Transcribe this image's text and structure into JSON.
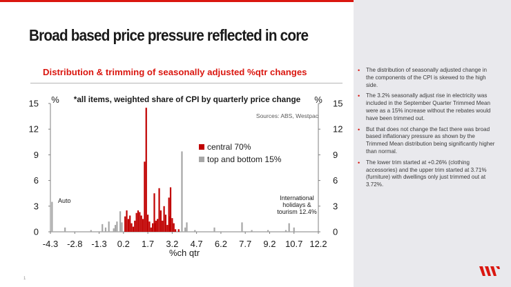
{
  "slide": {
    "title": "Broad based price pressure reflected in core",
    "subtitle": "Distribution & trimming of seasonally adjusted %qtr changes",
    "page_number": "1",
    "accent": "#da1710",
    "logo_icon": "westpac-w-logo-icon"
  },
  "sidebar": {
    "bullets": [
      "The distribution of seasonally adjusted change in the components of the CPI is skewed to the high side.",
      "The 3.2% seasonally adjust rise in electricity was included in the September Quarter Trimmed Mean were as a 15% increase without the rebates would have been trimmed out.",
      "But that does not change the fact there was broad based inflationary pressure as shown by the Trimmed Mean distribution being significantly higher than normal.",
      "The lower trim started at +0.26% (clothing accessories) and the upper trim started at 3.71% (furniture) with dwellings only just trimmed out at 3.72%."
    ]
  },
  "chart_data": {
    "type": "bar",
    "title": "*all items, weighted share of CPI by quarterly price change",
    "source": "Sources: ABS, Westpac",
    "xlabel": "%ch qtr",
    "ylabel_left": "%",
    "ylabel_right": "%",
    "ylim": [
      0,
      15
    ],
    "yticks": [
      0,
      3,
      6,
      9,
      12,
      15
    ],
    "xlim": [
      -4.3,
      12.2
    ],
    "xticks": [
      "-4.3",
      "-2.8",
      "-1.3",
      "0.2",
      "1.7",
      "3.2",
      "4.7",
      "6.2",
      "7.7",
      "9.2",
      "10.7",
      "12.2"
    ],
    "grid": false,
    "legend_position": "middle-right",
    "series": [
      {
        "name": "central 70%",
        "color": "#c00000",
        "points": [
          [
            0.3,
            1.8
          ],
          [
            0.4,
            2.5
          ],
          [
            0.5,
            1.5
          ],
          [
            0.6,
            1.9
          ],
          [
            0.7,
            1.0
          ],
          [
            0.8,
            0.6
          ],
          [
            0.9,
            1.3
          ],
          [
            1.0,
            2.2
          ],
          [
            1.1,
            2.5
          ],
          [
            1.2,
            2.3
          ],
          [
            1.3,
            1.9
          ],
          [
            1.4,
            1.5
          ],
          [
            1.5,
            8.2
          ],
          [
            1.6,
            14.5
          ],
          [
            1.7,
            2.0
          ],
          [
            1.8,
            1.2
          ],
          [
            1.9,
            0.5
          ],
          [
            2.0,
            1.0
          ],
          [
            2.1,
            4.5
          ],
          [
            2.15,
            1.0
          ],
          [
            2.2,
            1.3
          ],
          [
            2.3,
            1.5
          ],
          [
            2.4,
            5.1
          ],
          [
            2.5,
            2.5
          ],
          [
            2.6,
            1.3
          ],
          [
            2.7,
            3.0
          ],
          [
            2.8,
            2.0
          ],
          [
            2.9,
            0.8
          ],
          [
            3.0,
            4.0
          ],
          [
            3.05,
            1.8
          ],
          [
            3.1,
            5.2
          ],
          [
            3.2,
            1.6
          ],
          [
            3.3,
            1.0
          ],
          [
            3.4,
            0.3
          ],
          [
            3.6,
            0.3
          ]
        ]
      },
      {
        "name": "top and bottom 15%",
        "color": "#a6a6a6",
        "points": [
          [
            -4.2,
            3.5
          ],
          [
            -3.4,
            0.5
          ],
          [
            -1.8,
            0.2
          ],
          [
            -1.1,
            0.9
          ],
          [
            -0.9,
            0.5
          ],
          [
            -0.7,
            1.2
          ],
          [
            -0.4,
            0.4
          ],
          [
            -0.3,
            0.8
          ],
          [
            -0.2,
            1.2
          ],
          [
            0.0,
            2.4
          ],
          [
            0.1,
            1.1
          ],
          [
            3.8,
            9.4
          ],
          [
            4.0,
            0.5
          ],
          [
            4.1,
            1.1
          ],
          [
            4.6,
            0.2
          ],
          [
            5.8,
            0.5
          ],
          [
            7.5,
            1.1
          ],
          [
            8.1,
            0.2
          ],
          [
            9.1,
            0.2
          ],
          [
            10.2,
            0.2
          ],
          [
            10.4,
            1.0
          ],
          [
            10.7,
            0.5
          ]
        ]
      }
    ],
    "annotations": {
      "auto": "Auto",
      "international": [
        "International",
        "holidays &",
        "tourism 12.4%"
      ]
    }
  }
}
